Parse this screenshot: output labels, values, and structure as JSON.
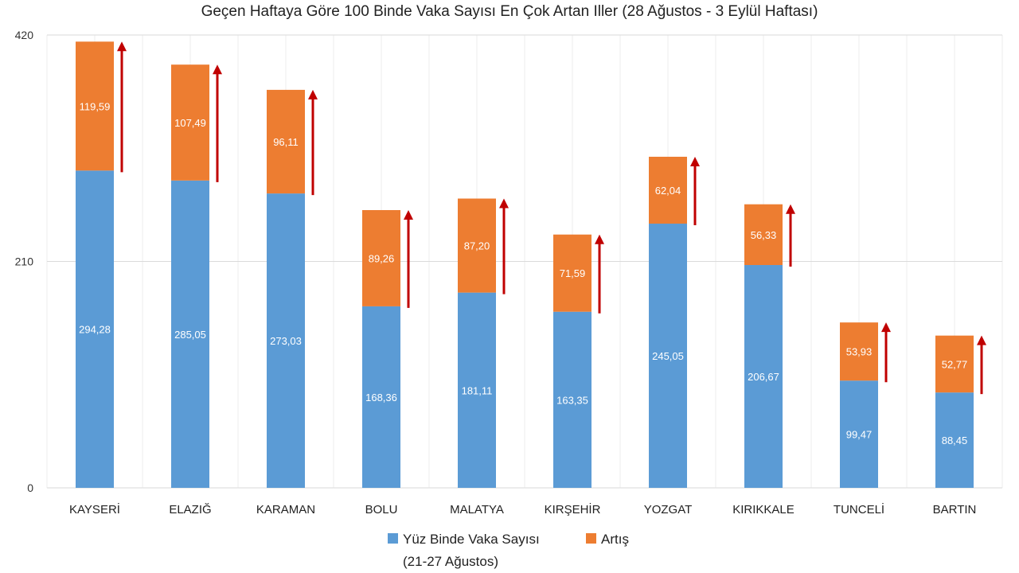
{
  "chart_data": {
    "type": "bar",
    "stacked": true,
    "title": "Geçen Haftaya Göre 100 Binde Vaka Sayısı En Çok Artan Iller (28 Ağustos - 3 Eylül Haftası)",
    "categories": [
      "KAYSERİ",
      "ELAZIĞ",
      "KARAMAN",
      "BOLU",
      "MALATYA",
      "KIRŞEHİR",
      "YOZGAT",
      "KIRIKKALE",
      "TUNCELİ",
      "BARTIN"
    ],
    "series": [
      {
        "name": "Yüz Binde Vaka Sayısı",
        "name_line2": "(21-27 Ağustos)",
        "color": "#5b9bd5",
        "values": [
          294.28,
          285.05,
          273.03,
          168.36,
          181.11,
          163.35,
          245.05,
          206.67,
          99.47,
          88.45
        ],
        "labels": [
          "294,28",
          "285,05",
          "273,03",
          "168,36",
          "181,11",
          "163,35",
          "245,05",
          "206,67",
          "99,47",
          "88,45"
        ]
      },
      {
        "name": "Artış",
        "color": "#ed7d31",
        "values": [
          119.59,
          107.49,
          96.11,
          89.26,
          87.2,
          71.59,
          62.04,
          56.33,
          53.93,
          52.77
        ],
        "labels": [
          "119,59",
          "107,49",
          "96,11",
          "89,26",
          "87,20",
          "71,59",
          "62,04",
          "56,33",
          "53,93",
          "52,77"
        ]
      }
    ],
    "ylim": [
      0,
      420
    ],
    "yticks": [
      "0",
      "210",
      "420"
    ],
    "ytick_values": [
      0,
      210,
      420
    ],
    "grid": true,
    "arrow_color": "#c00000",
    "legend": "bottom"
  }
}
